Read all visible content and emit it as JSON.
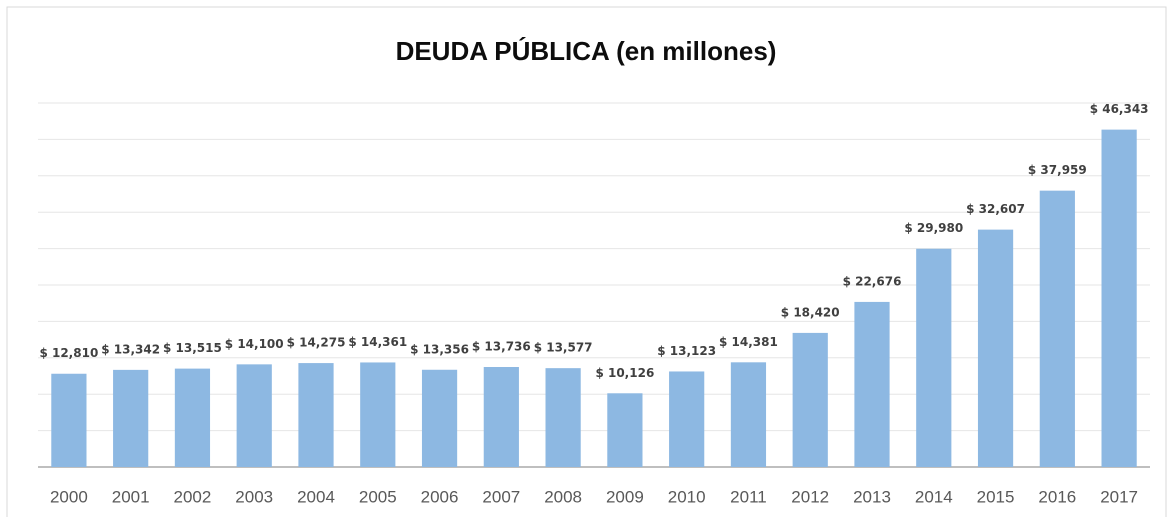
{
  "chart_data": {
    "type": "bar",
    "title": "DEUDA PÚBLICA (en millones)",
    "categories": [
      "2000",
      "2001",
      "2002",
      "2003",
      "2004",
      "2005",
      "2006",
      "2007",
      "2008",
      "2009",
      "2010",
      "2011",
      "2012",
      "2013",
      "2014",
      "2015",
      "2016",
      "2017"
    ],
    "values": [
      12810,
      13342,
      13515,
      14100,
      14275,
      14361,
      13356,
      13736,
      13577,
      10126,
      13123,
      14381,
      18420,
      22676,
      29980,
      32607,
      37959,
      46343
    ],
    "value_labels": [
      "$ 12,810",
      "$ 13,342",
      "$ 13,515",
      "$ 14,100",
      "$ 14,275",
      "$ 14,361",
      "$ 13,356",
      "$ 13,736",
      "$ 13,577",
      "$ 10,126",
      "$ 13,123",
      "$ 14,381",
      "$ 18,420",
      "$ 22,676",
      "$ 29,980",
      "$ 32,607",
      "$ 37,959",
      "$ 46,343"
    ],
    "color": "#8db8e2",
    "ylim": [
      0,
      50000
    ],
    "yticks": [
      0,
      5000,
      10000,
      15000,
      20000,
      25000,
      30000,
      35000,
      40000,
      45000,
      50000
    ],
    "grid": true
  }
}
